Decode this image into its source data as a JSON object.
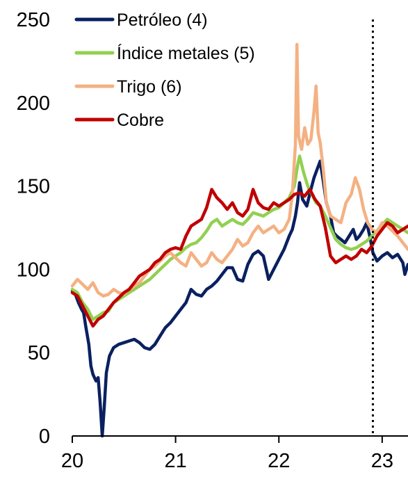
{
  "chart_data": {
    "type": "line",
    "title": "",
    "xlabel": "",
    "ylabel": "",
    "x_ticks": [
      "20",
      "21",
      "22",
      "23"
    ],
    "y_ticks": [
      "0",
      "50",
      "100",
      "150",
      "200",
      "250"
    ],
    "xlim": [
      2020.0,
      2023.25
    ],
    "ylim": [
      0,
      250
    ],
    "grid": false,
    "legend_position": "top-left",
    "vertical_marker": {
      "x": 2022.91,
      "style": "dotted"
    },
    "series": [
      {
        "name": "Petróleo (4)",
        "color": "#0a2060",
        "points": [
          [
            2020.0,
            87
          ],
          [
            2020.03,
            85
          ],
          [
            2020.06,
            80
          ],
          [
            2020.09,
            76
          ],
          [
            2020.11,
            74
          ],
          [
            2020.13,
            66
          ],
          [
            2020.16,
            55
          ],
          [
            2020.18,
            42
          ],
          [
            2020.2,
            37
          ],
          [
            2020.23,
            33
          ],
          [
            2020.25,
            35
          ],
          [
            2020.27,
            20
          ],
          [
            2020.29,
            0
          ],
          [
            2020.31,
            18
          ],
          [
            2020.33,
            38
          ],
          [
            2020.36,
            48
          ],
          [
            2020.4,
            53
          ],
          [
            2020.45,
            55
          ],
          [
            2020.5,
            56
          ],
          [
            2020.55,
            57
          ],
          [
            2020.6,
            58
          ],
          [
            2020.65,
            56
          ],
          [
            2020.7,
            53
          ],
          [
            2020.75,
            52
          ],
          [
            2020.8,
            55
          ],
          [
            2020.85,
            60
          ],
          [
            2020.9,
            65
          ],
          [
            2020.95,
            68
          ],
          [
            2021.0,
            72
          ],
          [
            2021.05,
            76
          ],
          [
            2021.1,
            80
          ],
          [
            2021.15,
            88
          ],
          [
            2021.2,
            85
          ],
          [
            2021.25,
            84
          ],
          [
            2021.3,
            88
          ],
          [
            2021.35,
            90
          ],
          [
            2021.4,
            93
          ],
          [
            2021.45,
            97
          ],
          [
            2021.5,
            101
          ],
          [
            2021.55,
            101
          ],
          [
            2021.6,
            94
          ],
          [
            2021.65,
            93
          ],
          [
            2021.7,
            103
          ],
          [
            2021.75,
            109
          ],
          [
            2021.8,
            111
          ],
          [
            2021.85,
            108
          ],
          [
            2021.9,
            94
          ],
          [
            2021.95,
            100
          ],
          [
            2022.0,
            106
          ],
          [
            2022.05,
            112
          ],
          [
            2022.1,
            120
          ],
          [
            2022.13,
            124
          ],
          [
            2022.16,
            132
          ],
          [
            2022.18,
            140
          ],
          [
            2022.2,
            152
          ],
          [
            2022.23,
            142
          ],
          [
            2022.27,
            138
          ],
          [
            2022.31,
            148
          ],
          [
            2022.34,
            155
          ],
          [
            2022.37,
            160
          ],
          [
            2022.4,
            165
          ],
          [
            2022.43,
            153
          ],
          [
            2022.46,
            140
          ],
          [
            2022.5,
            132
          ],
          [
            2022.53,
            122
          ],
          [
            2022.56,
            120
          ],
          [
            2022.6,
            118
          ],
          [
            2022.64,
            116
          ],
          [
            2022.68,
            120
          ],
          [
            2022.72,
            124
          ],
          [
            2022.75,
            118
          ],
          [
            2022.78,
            120
          ],
          [
            2022.82,
            124
          ],
          [
            2022.85,
            128
          ],
          [
            2022.88,
            120
          ],
          [
            2022.91,
            110
          ],
          [
            2022.95,
            105
          ],
          [
            2023.0,
            108
          ],
          [
            2023.05,
            110
          ],
          [
            2023.1,
            107
          ],
          [
            2023.15,
            109
          ],
          [
            2023.2,
            104
          ],
          [
            2023.22,
            97
          ],
          [
            2023.25,
            103
          ]
        ]
      },
      {
        "name": "Índice metales (5)",
        "color": "#92d050",
        "points": [
          [
            2020.0,
            88
          ],
          [
            2020.05,
            86
          ],
          [
            2020.1,
            80
          ],
          [
            2020.15,
            76
          ],
          [
            2020.2,
            70
          ],
          [
            2020.25,
            72
          ],
          [
            2020.3,
            74
          ],
          [
            2020.35,
            75
          ],
          [
            2020.4,
            80
          ],
          [
            2020.45,
            82
          ],
          [
            2020.5,
            84
          ],
          [
            2020.55,
            86
          ],
          [
            2020.6,
            88
          ],
          [
            2020.65,
            90
          ],
          [
            2020.7,
            92
          ],
          [
            2020.75,
            94
          ],
          [
            2020.8,
            97
          ],
          [
            2020.85,
            100
          ],
          [
            2020.9,
            103
          ],
          [
            2020.95,
            106
          ],
          [
            2021.0,
            108
          ],
          [
            2021.05,
            110
          ],
          [
            2021.1,
            113
          ],
          [
            2021.15,
            115
          ],
          [
            2021.2,
            116
          ],
          [
            2021.25,
            119
          ],
          [
            2021.3,
            123
          ],
          [
            2021.35,
            128
          ],
          [
            2021.4,
            130
          ],
          [
            2021.45,
            126
          ],
          [
            2021.5,
            128
          ],
          [
            2021.55,
            130
          ],
          [
            2021.6,
            128
          ],
          [
            2021.65,
            127
          ],
          [
            2021.7,
            130
          ],
          [
            2021.75,
            134
          ],
          [
            2021.8,
            133
          ],
          [
            2021.85,
            132
          ],
          [
            2021.9,
            134
          ],
          [
            2021.95,
            136
          ],
          [
            2022.0,
            137
          ],
          [
            2022.05,
            140
          ],
          [
            2022.1,
            143
          ],
          [
            2022.15,
            150
          ],
          [
            2022.18,
            162
          ],
          [
            2022.2,
            168
          ],
          [
            2022.24,
            158
          ],
          [
            2022.28,
            150
          ],
          [
            2022.32,
            145
          ],
          [
            2022.36,
            140
          ],
          [
            2022.4,
            138
          ],
          [
            2022.45,
            132
          ],
          [
            2022.5,
            125
          ],
          [
            2022.55,
            118
          ],
          [
            2022.6,
            115
          ],
          [
            2022.65,
            113
          ],
          [
            2022.7,
            112
          ],
          [
            2022.75,
            113
          ],
          [
            2022.8,
            115
          ],
          [
            2022.85,
            117
          ],
          [
            2022.9,
            120
          ],
          [
            2022.95,
            123
          ],
          [
            2023.0,
            127
          ],
          [
            2023.05,
            130
          ],
          [
            2023.1,
            128
          ],
          [
            2023.15,
            126
          ],
          [
            2023.2,
            124
          ],
          [
            2023.25,
            122
          ]
        ]
      },
      {
        "name": "Trigo (6)",
        "color": "#f4b183",
        "points": [
          [
            2020.0,
            90
          ],
          [
            2020.05,
            94
          ],
          [
            2020.1,
            91
          ],
          [
            2020.15,
            88
          ],
          [
            2020.2,
            92
          ],
          [
            2020.25,
            86
          ],
          [
            2020.3,
            84
          ],
          [
            2020.35,
            85
          ],
          [
            2020.4,
            88
          ],
          [
            2020.45,
            86
          ],
          [
            2020.5,
            85
          ],
          [
            2020.55,
            88
          ],
          [
            2020.6,
            90
          ],
          [
            2020.65,
            92
          ],
          [
            2020.7,
            96
          ],
          [
            2020.75,
            100
          ],
          [
            2020.8,
            102
          ],
          [
            2020.85,
            105
          ],
          [
            2020.9,
            108
          ],
          [
            2020.95,
            110
          ],
          [
            2021.0,
            107
          ],
          [
            2021.05,
            104
          ],
          [
            2021.1,
            102
          ],
          [
            2021.15,
            110
          ],
          [
            2021.2,
            106
          ],
          [
            2021.25,
            102
          ],
          [
            2021.3,
            104
          ],
          [
            2021.35,
            110
          ],
          [
            2021.4,
            106
          ],
          [
            2021.45,
            104
          ],
          [
            2021.5,
            108
          ],
          [
            2021.55,
            112
          ],
          [
            2021.6,
            118
          ],
          [
            2021.65,
            114
          ],
          [
            2021.7,
            116
          ],
          [
            2021.75,
            122
          ],
          [
            2021.8,
            126
          ],
          [
            2021.85,
            122
          ],
          [
            2021.9,
            124
          ],
          [
            2021.95,
            126
          ],
          [
            2022.0,
            122
          ],
          [
            2022.05,
            124
          ],
          [
            2022.1,
            130
          ],
          [
            2022.13,
            145
          ],
          [
            2022.16,
            175
          ],
          [
            2022.175,
            235
          ],
          [
            2022.19,
            180
          ],
          [
            2022.22,
            172
          ],
          [
            2022.25,
            185
          ],
          [
            2022.28,
            175
          ],
          [
            2022.31,
            178
          ],
          [
            2022.34,
            195
          ],
          [
            2022.36,
            210
          ],
          [
            2022.38,
            182
          ],
          [
            2022.4,
            176
          ],
          [
            2022.43,
            160
          ],
          [
            2022.46,
            140
          ],
          [
            2022.5,
            132
          ],
          [
            2022.55,
            130
          ],
          [
            2022.6,
            128
          ],
          [
            2022.65,
            140
          ],
          [
            2022.7,
            145
          ],
          [
            2022.74,
            155
          ],
          [
            2022.78,
            148
          ],
          [
            2022.82,
            136
          ],
          [
            2022.86,
            128
          ],
          [
            2022.9,
            124
          ],
          [
            2022.95,
            122
          ],
          [
            2023.0,
            128
          ],
          [
            2023.05,
            126
          ],
          [
            2023.1,
            123
          ],
          [
            2023.15,
            120
          ],
          [
            2023.2,
            116
          ],
          [
            2023.25,
            112
          ]
        ]
      },
      {
        "name": "Cobre",
        "color": "#c00000",
        "points": [
          [
            2020.0,
            86
          ],
          [
            2020.05,
            84
          ],
          [
            2020.1,
            78
          ],
          [
            2020.15,
            72
          ],
          [
            2020.2,
            66
          ],
          [
            2020.25,
            70
          ],
          [
            2020.3,
            72
          ],
          [
            2020.35,
            76
          ],
          [
            2020.4,
            80
          ],
          [
            2020.45,
            83
          ],
          [
            2020.5,
            86
          ],
          [
            2020.55,
            88
          ],
          [
            2020.6,
            92
          ],
          [
            2020.65,
            96
          ],
          [
            2020.7,
            98
          ],
          [
            2020.75,
            100
          ],
          [
            2020.8,
            104
          ],
          [
            2020.85,
            106
          ],
          [
            2020.9,
            110
          ],
          [
            2020.95,
            112
          ],
          [
            2021.0,
            113
          ],
          [
            2021.05,
            112
          ],
          [
            2021.1,
            120
          ],
          [
            2021.15,
            126
          ],
          [
            2021.2,
            128
          ],
          [
            2021.25,
            130
          ],
          [
            2021.3,
            137
          ],
          [
            2021.35,
            148
          ],
          [
            2021.4,
            143
          ],
          [
            2021.45,
            140
          ],
          [
            2021.5,
            136
          ],
          [
            2021.55,
            140
          ],
          [
            2021.6,
            134
          ],
          [
            2021.65,
            132
          ],
          [
            2021.7,
            136
          ],
          [
            2021.75,
            148
          ],
          [
            2021.8,
            140
          ],
          [
            2021.85,
            137
          ],
          [
            2021.9,
            136
          ],
          [
            2021.95,
            140
          ],
          [
            2022.0,
            138
          ],
          [
            2022.05,
            140
          ],
          [
            2022.1,
            142
          ],
          [
            2022.15,
            145
          ],
          [
            2022.2,
            146
          ],
          [
            2022.25,
            144
          ],
          [
            2022.3,
            148
          ],
          [
            2022.35,
            142
          ],
          [
            2022.4,
            138
          ],
          [
            2022.45,
            125
          ],
          [
            2022.5,
            108
          ],
          [
            2022.55,
            104
          ],
          [
            2022.6,
            106
          ],
          [
            2022.65,
            108
          ],
          [
            2022.7,
            106
          ],
          [
            2022.75,
            108
          ],
          [
            2022.8,
            112
          ],
          [
            2022.85,
            110
          ],
          [
            2022.9,
            114
          ],
          [
            2022.95,
            120
          ],
          [
            2023.0,
            124
          ],
          [
            2023.05,
            128
          ],
          [
            2023.1,
            126
          ],
          [
            2023.15,
            122
          ],
          [
            2023.2,
            124
          ],
          [
            2023.25,
            126
          ]
        ]
      }
    ]
  }
}
